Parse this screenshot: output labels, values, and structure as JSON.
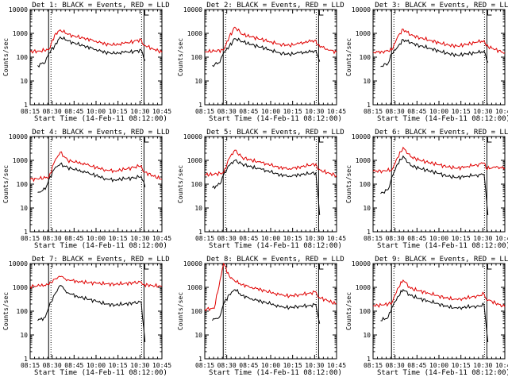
{
  "chart_data": [
    {
      "type": "line",
      "title": "Det 1: BLACK = Events, RED = LLD",
      "xlabel": "Start Time (14-Feb-11 08:12:00)",
      "ylabel": "Counts/sec",
      "x_ticks": [
        "08:15",
        "08:30",
        "08:45",
        "10:00",
        "10:15",
        "10:30",
        "10:45"
      ],
      "y_ticks": [
        "1",
        "10",
        "100",
        "1000",
        "10000"
      ],
      "y_scale": "log",
      "ylim": [
        1,
        10000
      ],
      "colors": {
        "events": "#000000",
        "lld": "#e00000"
      },
      "series": [
        {
          "name": "RED = LLD",
          "x": [
            0.0,
            0.5,
            1.0,
            1.3,
            1.6,
            2.0,
            2.5,
            3.0,
            3.5,
            4.0,
            4.5,
            5.0,
            5.5,
            5.9,
            6.0,
            6.5,
            7.0
          ],
          "values": [
            170,
            180,
            210,
            850,
            1400,
            900,
            700,
            600,
            470,
            360,
            320,
            380,
            450,
            560,
            330,
            230,
            160
          ]
        },
        {
          "name": "BLACK = Events",
          "x": [
            0.4,
            0.8,
            1.0,
            1.3,
            1.6,
            2.0,
            2.5,
            3.0,
            3.5,
            4.0,
            4.5,
            5.0,
            5.5,
            5.9,
            6.1
          ],
          "values": [
            45,
            60,
            150,
            300,
            700,
            480,
            350,
            280,
            210,
            160,
            140,
            160,
            170,
            200,
            70
          ]
        }
      ]
    },
    {
      "type": "line",
      "title": "Det 2: BLACK = Events, RED = LLD",
      "xlabel": "Start Time (14-Feb-11 08:12:00)",
      "ylabel": "Counts/sec",
      "x_ticks": [
        "08:15",
        "08:30",
        "08:45",
        "10:00",
        "10:15",
        "10:30",
        "10:45"
      ],
      "y_ticks": [
        "1",
        "10",
        "100",
        "1000",
        "10000"
      ],
      "y_scale": "log",
      "ylim": [
        1,
        10000
      ],
      "colors": {
        "events": "#000000",
        "lld": "#e00000"
      },
      "series": [
        {
          "name": "RED = LLD",
          "x": [
            0.0,
            0.5,
            1.0,
            1.3,
            1.6,
            2.0,
            2.5,
            3.0,
            3.5,
            4.0,
            4.5,
            5.0,
            5.5,
            5.9,
            6.0,
            6.5,
            7.0
          ],
          "values": [
            170,
            180,
            200,
            700,
            1800,
            900,
            700,
            560,
            440,
            350,
            310,
            370,
            440,
            520,
            320,
            220,
            160
          ]
        },
        {
          "name": "BLACK = Events",
          "x": [
            0.4,
            0.8,
            1.0,
            1.3,
            1.6,
            2.0,
            2.5,
            3.0,
            3.5,
            4.0,
            4.5,
            5.0,
            5.5,
            5.9,
            6.1
          ],
          "values": [
            45,
            60,
            150,
            280,
            600,
            450,
            330,
            260,
            200,
            150,
            130,
            150,
            160,
            190,
            65
          ]
        }
      ]
    },
    {
      "type": "line",
      "title": "Det 3: BLACK = Events, RED = LLD",
      "xlabel": "Start Time (14-Feb-11 08:12:00)",
      "ylabel": "Counts/sec",
      "x_ticks": [
        "08:15",
        "08:30",
        "08:45",
        "10:00",
        "10:15",
        "10:30",
        "10:45"
      ],
      "y_ticks": [
        "1",
        "10",
        "100",
        "1000",
        "10000"
      ],
      "y_scale": "log",
      "ylim": [
        1,
        10000
      ],
      "colors": {
        "events": "#000000",
        "lld": "#e00000"
      },
      "series": [
        {
          "name": "RED = LLD",
          "x": [
            0.0,
            0.5,
            1.0,
            1.3,
            1.6,
            2.0,
            2.5,
            3.0,
            3.5,
            4.0,
            4.5,
            5.0,
            5.5,
            5.9,
            6.0,
            6.5,
            7.0
          ],
          "values": [
            160,
            170,
            200,
            700,
            1500,
            850,
            650,
            520,
            400,
            320,
            290,
            350,
            420,
            500,
            300,
            210,
            150
          ]
        },
        {
          "name": "BLACK = Events",
          "x": [
            0.4,
            0.8,
            1.0,
            1.3,
            1.6,
            2.0,
            2.5,
            3.0,
            3.5,
            4.0,
            4.5,
            5.0,
            5.5,
            5.9,
            6.1
          ],
          "values": [
            40,
            55,
            140,
            260,
            550,
            400,
            300,
            240,
            180,
            140,
            120,
            140,
            150,
            180,
            60
          ]
        }
      ]
    },
    {
      "type": "line",
      "title": "Det 4: BLACK = Events, RED = LLD",
      "xlabel": "Start Time (14-Feb-11 08:12:00)",
      "ylabel": "Counts/sec",
      "x_ticks": [
        "08:15",
        "08:30",
        "08:45",
        "10:00",
        "10:15",
        "10:30",
        "10:45"
      ],
      "y_ticks": [
        "1",
        "10",
        "100",
        "1000",
        "10000"
      ],
      "y_scale": "log",
      "ylim": [
        1,
        10000
      ],
      "colors": {
        "events": "#000000",
        "lld": "#e00000"
      },
      "series": [
        {
          "name": "RED = LLD",
          "x": [
            0.0,
            0.5,
            1.0,
            1.3,
            1.6,
            2.0,
            2.5,
            3.0,
            3.5,
            4.0,
            4.5,
            5.0,
            5.5,
            5.9,
            6.0,
            6.5,
            7.0
          ],
          "values": [
            160,
            170,
            200,
            900,
            2200,
            1000,
            800,
            650,
            500,
            400,
            360,
            420,
            500,
            600,
            340,
            230,
            160
          ]
        },
        {
          "name": "BLACK = Events",
          "x": [
            0.4,
            0.8,
            1.0,
            1.3,
            1.6,
            2.0,
            2.5,
            3.0,
            3.5,
            4.0,
            4.5,
            5.0,
            5.5,
            5.9,
            6.1
          ],
          "values": [
            45,
            60,
            160,
            450,
            700,
            500,
            380,
            300,
            230,
            170,
            150,
            170,
            180,
            210,
            75
          ]
        }
      ]
    },
    {
      "type": "line",
      "title": "Det 5: BLACK = Events, RED = LLD",
      "xlabel": "Start Time (14-Feb-11 08:12:00)",
      "ylabel": "Counts/sec",
      "x_ticks": [
        "08:15",
        "08:30",
        "08:45",
        "10:00",
        "10:15",
        "10:30",
        "10:45"
      ],
      "y_ticks": [
        "1",
        "10",
        "100",
        "1000",
        "10000"
      ],
      "y_scale": "log",
      "ylim": [
        1,
        10000
      ],
      "colors": {
        "events": "#000000",
        "lld": "#e00000"
      },
      "series": [
        {
          "name": "RED = LLD",
          "x": [
            0.0,
            0.5,
            1.0,
            1.3,
            1.6,
            2.0,
            2.5,
            3.0,
            3.5,
            4.0,
            4.5,
            5.0,
            5.5,
            5.9,
            6.0,
            6.5,
            7.0
          ],
          "values": [
            250,
            260,
            300,
            1200,
            2700,
            1300,
            1000,
            800,
            620,
            500,
            450,
            520,
            600,
            700,
            420,
            300,
            230
          ]
        },
        {
          "name": "BLACK = Events",
          "x": [
            0.4,
            0.8,
            1.0,
            1.3,
            1.6,
            2.0,
            2.5,
            3.0,
            3.5,
            4.0,
            4.5,
            5.0,
            5.5,
            5.9,
            6.1
          ],
          "values": [
            70,
            100,
            250,
            600,
            1000,
            700,
            520,
            420,
            320,
            250,
            220,
            250,
            270,
            300,
            5
          ]
        }
      ]
    },
    {
      "type": "line",
      "title": "Det 6: BLACK = Events, RED = LLD",
      "xlabel": "Start Time (14-Feb-11 08:12:00)",
      "ylabel": "Counts/sec",
      "x_ticks": [
        "08:15",
        "08:30",
        "08:45",
        "10:00",
        "10:15",
        "10:30",
        "10:45"
      ],
      "y_ticks": [
        "1",
        "10",
        "100",
        "1000",
        "10000"
      ],
      "y_scale": "log",
      "ylim": [
        1,
        10000
      ],
      "colors": {
        "events": "#000000",
        "lld": "#e00000"
      },
      "series": [
        {
          "name": "RED = LLD",
          "x": [
            0.0,
            0.5,
            1.0,
            1.3,
            1.6,
            2.0,
            2.5,
            3.0,
            3.5,
            4.0,
            4.5,
            5.0,
            5.5,
            5.9,
            6.0,
            6.5,
            7.0
          ],
          "values": [
            350,
            360,
            400,
            1300,
            3500,
            1400,
            1000,
            800,
            650,
            520,
            470,
            560,
            650,
            780,
            450,
            500,
            480
          ]
        },
        {
          "name": "BLACK = Events",
          "x": [
            0.4,
            0.8,
            1.0,
            1.3,
            1.6,
            2.0,
            2.5,
            3.0,
            3.5,
            4.0,
            4.5,
            5.0,
            5.5,
            5.9,
            6.1
          ],
          "values": [
            40,
            60,
            200,
            700,
            1500,
            600,
            450,
            360,
            280,
            210,
            190,
            220,
            240,
            260,
            5
          ]
        }
      ]
    },
    {
      "type": "line",
      "title": "Det 7: BLACK = Events, RED = LLD",
      "xlabel": "Start Time (14-Feb-11 08:12:00)",
      "ylabel": "Counts/sec",
      "x_ticks": [
        "08:15",
        "08:30",
        "08:45",
        "10:00",
        "10:15",
        "10:30",
        "10:45"
      ],
      "y_ticks": [
        "1",
        "10",
        "100",
        "1000",
        "10000"
      ],
      "y_scale": "log",
      "ylim": [
        1,
        10000
      ],
      "colors": {
        "events": "#000000",
        "lld": "#e00000"
      },
      "series": [
        {
          "name": "RED = LLD",
          "x": [
            0.0,
            0.5,
            1.0,
            1.3,
            1.6,
            2.0,
            2.5,
            3.0,
            3.5,
            4.0,
            4.5,
            5.0,
            5.5,
            5.9,
            6.0,
            6.5,
            7.0
          ],
          "values": [
            1100,
            1150,
            1300,
            2200,
            2800,
            2100,
            1800,
            1600,
            1500,
            1400,
            1350,
            1450,
            1550,
            1700,
            1300,
            1200,
            1100
          ]
        },
        {
          "name": "BLACK = Events",
          "x": [
            0.4,
            0.8,
            1.0,
            1.3,
            1.6,
            2.0,
            2.5,
            3.0,
            3.5,
            4.0,
            4.5,
            5.0,
            5.5,
            5.9,
            6.1
          ],
          "values": [
            40,
            55,
            150,
            500,
            1200,
            600,
            420,
            330,
            260,
            200,
            180,
            200,
            220,
            250,
            5
          ]
        }
      ]
    },
    {
      "type": "line",
      "title": "Det 8: BLACK = Events, RED = LLD",
      "xlabel": "Start Time (14-Feb-11 08:12:00)",
      "ylabel": "Counts/sec",
      "x_ticks": [
        "08:15",
        "08:30",
        "08:45",
        "10:00",
        "10:15",
        "10:30",
        "10:45"
      ],
      "y_ticks": [
        "1",
        "10",
        "100",
        "1000",
        "10000"
      ],
      "y_scale": "log",
      "ylim": [
        1,
        10000
      ],
      "colors": {
        "events": "#000000",
        "lld": "#e00000"
      },
      "series": [
        {
          "name": "RED = LLD",
          "x": [
            0.0,
            0.5,
            1.0,
            1.3,
            1.6,
            2.0,
            2.5,
            3.0,
            3.5,
            4.0,
            4.5,
            5.0,
            5.5,
            5.9,
            6.0,
            6.5,
            7.0
          ],
          "values": [
            120,
            130,
            10000,
            3000,
            1800,
            1300,
            1000,
            800,
            600,
            480,
            430,
            490,
            560,
            650,
            400,
            280,
            200
          ]
        },
        {
          "name": "BLACK = Events",
          "x": [
            0.4,
            0.8,
            1.0,
            1.3,
            1.6,
            2.0,
            2.5,
            3.0,
            3.5,
            4.0,
            4.5,
            5.0,
            5.5,
            5.9,
            6.1
          ],
          "values": [
            40,
            60,
            200,
            500,
            800,
            450,
            330,
            260,
            200,
            150,
            140,
            160,
            170,
            190,
            30
          ]
        }
      ]
    },
    {
      "type": "line",
      "title": "Det 9: BLACK = Events, RED = LLD",
      "xlabel": "Start Time (14-Feb-11 08:12:00)",
      "ylabel": "Counts/sec",
      "x_ticks": [
        "08:15",
        "08:30",
        "08:45",
        "10:00",
        "10:15",
        "10:30",
        "10:45"
      ],
      "y_ticks": [
        "1",
        "10",
        "100",
        "1000",
        "10000"
      ],
      "y_scale": "log",
      "ylim": [
        1,
        10000
      ],
      "colors": {
        "events": "#000000",
        "lld": "#e00000"
      },
      "series": [
        {
          "name": "RED = LLD",
          "x": [
            0.0,
            0.5,
            1.0,
            1.3,
            1.6,
            2.0,
            2.5,
            3.0,
            3.5,
            4.0,
            4.5,
            5.0,
            5.5,
            5.9,
            6.0,
            6.5,
            7.0
          ],
          "values": [
            170,
            180,
            220,
            900,
            2000,
            900,
            700,
            560,
            430,
            340,
            300,
            360,
            430,
            520,
            330,
            220,
            150
          ]
        },
        {
          "name": "BLACK = Events",
          "x": [
            0.4,
            0.8,
            1.0,
            1.3,
            1.6,
            2.0,
            2.5,
            3.0,
            3.5,
            4.0,
            4.5,
            5.0,
            5.5,
            5.9,
            6.1
          ],
          "values": [
            40,
            55,
            140,
            400,
            800,
            450,
            330,
            260,
            200,
            150,
            130,
            150,
            160,
            180,
            5
          ]
        }
      ]
    }
  ]
}
